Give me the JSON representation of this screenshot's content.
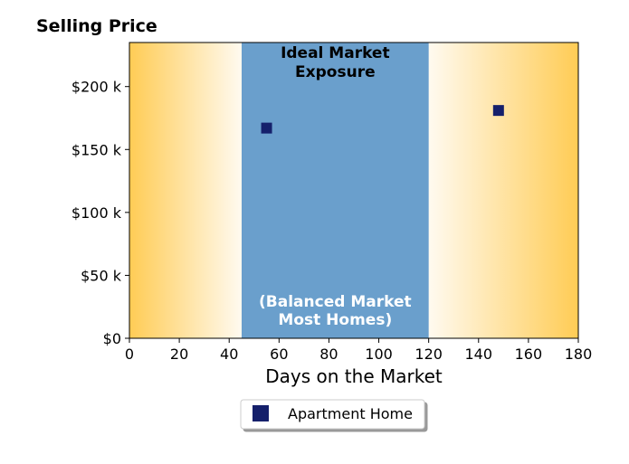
{
  "chart_data": {
    "type": "scatter",
    "title": "Selling Price",
    "xlabel": "Days on the Market",
    "ylabel": "",
    "xlim": [
      0,
      180
    ],
    "ylim": [
      0,
      235000
    ],
    "x_ticks": [
      0,
      20,
      40,
      60,
      80,
      100,
      120,
      140,
      160,
      180
    ],
    "x_tick_labels": [
      "0",
      "20",
      "40",
      "60",
      "80",
      "100",
      "120",
      "140",
      "160",
      "180"
    ],
    "y_ticks": [
      0,
      50000,
      100000,
      150000,
      200000
    ],
    "y_tick_labels": [
      "$0",
      "$50 k",
      "$100 k",
      "$150 k",
      "$200 k"
    ],
    "grid": false,
    "legend_position": "bottom-center",
    "region": {
      "x_range": [
        45,
        120
      ],
      "label_top": [
        "Ideal Market",
        "Exposure"
      ],
      "label_bottom": [
        "(Balanced Market",
        "Most Homes)"
      ],
      "color": "#6a9fcc"
    },
    "gradient_colors": {
      "edge": "#ffcc55",
      "center": "#fffaf0"
    },
    "series": [
      {
        "name": "Apartment Home",
        "marker": "square",
        "color": "#15206b",
        "points": [
          {
            "x": 55,
            "y": 167000
          },
          {
            "x": 148,
            "y": 181000
          }
        ]
      }
    ]
  }
}
